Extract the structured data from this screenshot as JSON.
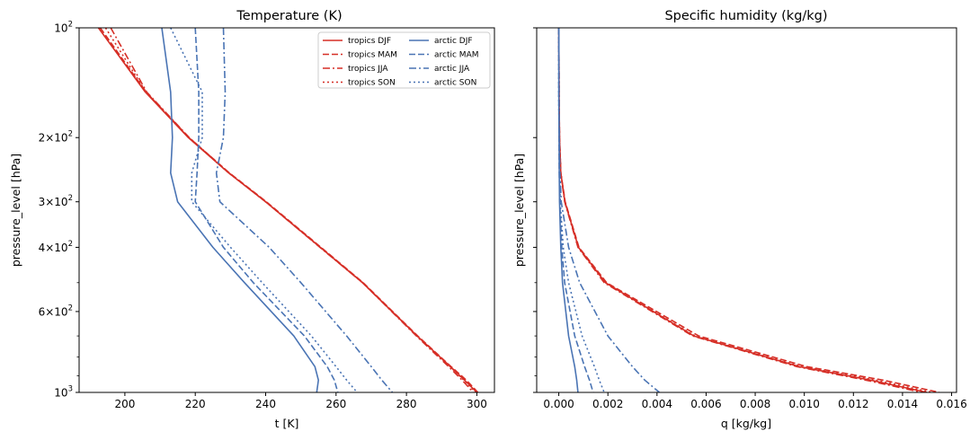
{
  "chart_data": [
    {
      "type": "line",
      "title": "Temperature (K)",
      "xlabel": "t [K]",
      "ylabel": "pressure_level [hPa]",
      "xlim": [
        187,
        305
      ],
      "ylim": [
        1000,
        100
      ],
      "yscale": "log",
      "y_inverted": true,
      "grid": false,
      "legend_position": "top-right",
      "xticks": [
        "200",
        "220",
        "240",
        "260",
        "280",
        "300"
      ],
      "yticks": [
        {
          "base": "10",
          "exp": "2",
          "value": 100
        },
        {
          "coef": "2",
          "base": "10",
          "exp": "2",
          "value": 200
        },
        {
          "coef": "3",
          "base": "10",
          "exp": "2",
          "value": 300
        },
        {
          "coef": "4",
          "base": "10",
          "exp": "2",
          "value": 400
        },
        {
          "coef": "6",
          "base": "10",
          "exp": "2",
          "value": 600
        },
        {
          "base": "10",
          "exp": "3",
          "value": 1000
        }
      ],
      "pressure": [
        100,
        150,
        200,
        250,
        300,
        400,
        500,
        700,
        850,
        925,
        1000
      ],
      "series": [
        {
          "name": "tropics DJF",
          "color": "#d62f27",
          "dash": "solid",
          "values": [
            192.5,
            205.8,
            218.0,
            229.5,
            240.0,
            255.5,
            267.5,
            283.0,
            292.5,
            296.5,
            300.0
          ]
        },
        {
          "name": "tropics MAM",
          "color": "#d62f27",
          "dash": "dashed",
          "values": [
            193.0,
            206.0,
            218.2,
            229.7,
            240.2,
            255.7,
            267.7,
            283.2,
            292.7,
            297.0,
            300.3
          ]
        },
        {
          "name": "tropics JJA",
          "color": "#d62f27",
          "dash": "dashdot",
          "values": [
            196.0,
            206.2,
            218.3,
            229.6,
            240.0,
            255.4,
            267.5,
            282.8,
            292.0,
            295.8,
            299.0
          ]
        },
        {
          "name": "tropics SON",
          "color": "#d62f27",
          "dash": "dotted",
          "values": [
            194.5,
            206.0,
            218.1,
            229.5,
            240.0,
            255.5,
            267.6,
            283.0,
            292.4,
            296.3,
            299.6
          ]
        },
        {
          "name": "arctic DJF",
          "color": "#4a74b4",
          "dash": "solid",
          "values": [
            210.5,
            213.0,
            213.5,
            213.0,
            215.0,
            225.0,
            234.0,
            248.0,
            254.0,
            255.0,
            254.5
          ]
        },
        {
          "name": "arctic MAM",
          "color": "#4a74b4",
          "dash": "dashed",
          "values": [
            220.0,
            221.0,
            221.0,
            220.5,
            220.0,
            228.0,
            236.5,
            251.0,
            257.5,
            259.5,
            260.5
          ]
        },
        {
          "name": "arctic JJA",
          "color": "#4a74b4",
          "dash": "dashdot",
          "values": [
            228.0,
            228.5,
            228.0,
            226.0,
            227.0,
            241.0,
            250.0,
            263.0,
            270.0,
            273.0,
            276.0
          ]
        },
        {
          "name": "arctic SON",
          "color": "#4a74b4",
          "dash": "dotted",
          "values": [
            213.0,
            222.0,
            222.0,
            219.0,
            219.0,
            230.0,
            239.0,
            253.0,
            260.0,
            263.0,
            266.0
          ]
        }
      ]
    },
    {
      "type": "line",
      "title": "Specific humidity (kg/kg)",
      "xlabel": "q [kg/kg]",
      "ylabel": "pressure_level [hPa]",
      "xlim": [
        -0.0009,
        0.0162
      ],
      "ylim": [
        1000,
        100
      ],
      "yscale": "log",
      "y_inverted": true,
      "grid": false,
      "legend_position": "none",
      "xticks": [
        "0.000",
        "0.002",
        "0.004",
        "0.006",
        "0.008",
        "0.010",
        "0.012",
        "0.014",
        "0.016"
      ],
      "pressure": [
        100,
        150,
        200,
        250,
        300,
        400,
        500,
        700,
        850,
        925,
        1000
      ],
      "series": [
        {
          "name": "tropics DJF",
          "color": "#d62f27",
          "dash": "solid",
          "values": [
            0.0,
            1e-05,
            3e-05,
            8e-05,
            0.00025,
            0.0008,
            0.0019,
            0.0055,
            0.0098,
            0.0127,
            0.015
          ]
        },
        {
          "name": "tropics MAM",
          "color": "#d62f27",
          "dash": "dashed",
          "values": [
            0.0,
            1e-05,
            3e-05,
            8e-05,
            0.00026,
            0.00082,
            0.00195,
            0.0057,
            0.0101,
            0.0132,
            0.0155
          ]
        },
        {
          "name": "tropics JJA",
          "color": "#d62f27",
          "dash": "dashdot",
          "values": [
            0.0,
            1e-05,
            3e-05,
            8e-05,
            0.00024,
            0.00078,
            0.00185,
            0.00545,
            0.0097,
            0.0125,
            0.0148
          ]
        },
        {
          "name": "tropics SON",
          "color": "#d62f27",
          "dash": "dotted",
          "values": [
            0.0,
            1e-05,
            3e-05,
            8e-05,
            0.00025,
            0.0008,
            0.0019,
            0.00555,
            0.0099,
            0.0129,
            0.0152
          ]
        },
        {
          "name": "arctic DJF",
          "color": "#4a74b4",
          "dash": "solid",
          "values": [
            0.0,
            0.0,
            1e-05,
            2e-05,
            3e-05,
            8e-05,
            0.00015,
            0.0004,
            0.00065,
            0.00073,
            0.00078
          ]
        },
        {
          "name": "arctic MAM",
          "color": "#4a74b4",
          "dash": "dashed",
          "values": [
            0.0,
            0.0,
            1e-05,
            2e-05,
            4e-05,
            0.00012,
            0.00024,
            0.00065,
            0.00105,
            0.00125,
            0.0014
          ]
        },
        {
          "name": "arctic JJA",
          "color": "#4a74b4",
          "dash": "dashdot",
          "values": [
            0.0,
            1e-05,
            2e-05,
            5e-05,
            0.0001,
            0.0004,
            0.00085,
            0.002,
            0.003,
            0.0035,
            0.0041
          ]
        },
        {
          "name": "arctic SON",
          "color": "#4a74b4",
          "dash": "dotted",
          "values": [
            0.0,
            0.0,
            1e-05,
            3e-05,
            6e-05,
            0.00018,
            0.0004,
            0.00095,
            0.00145,
            0.00165,
            0.00185
          ]
        }
      ]
    }
  ]
}
